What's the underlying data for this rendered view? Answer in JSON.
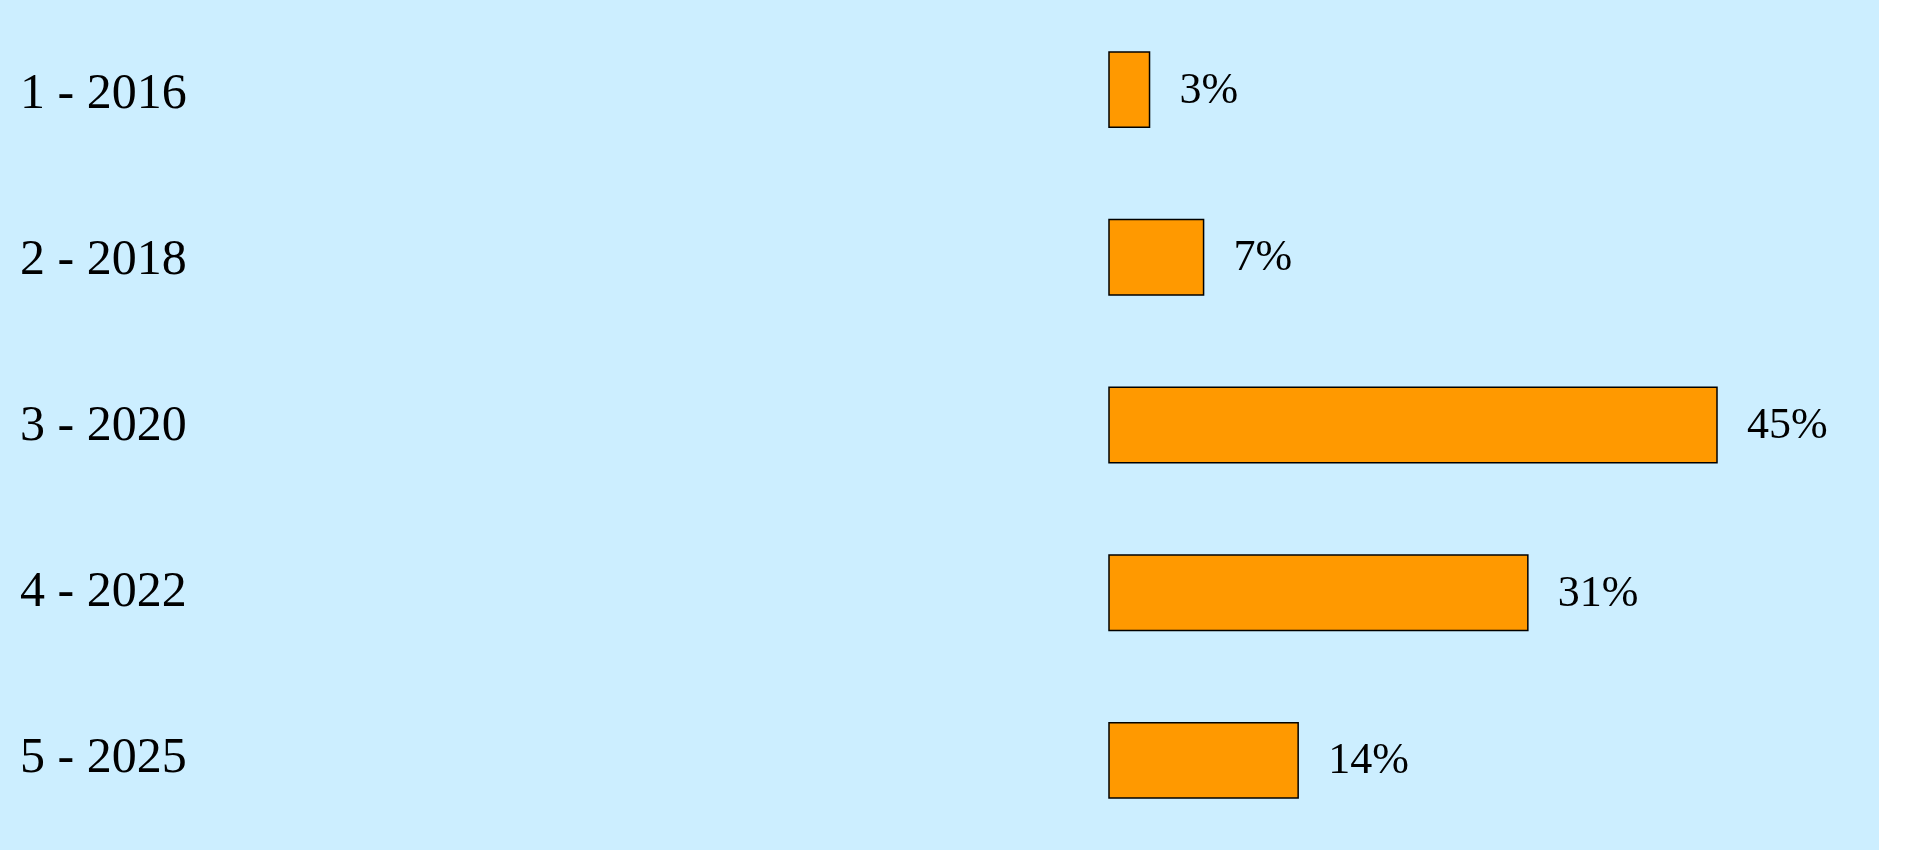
{
  "chart_data": {
    "type": "bar",
    "orientation": "horizontal",
    "categories": [
      "1 - 2016",
      "2 - 2018",
      "3 - 2020",
      "4 - 2022",
      "5 - 2025"
    ],
    "values": [
      3,
      7,
      45,
      31,
      14
    ],
    "color": "#ff9900",
    "value_labels": [
      "3%",
      "7%",
      "45%",
      "31%",
      "14%"
    ],
    "tick_labels": "y"
  }
}
